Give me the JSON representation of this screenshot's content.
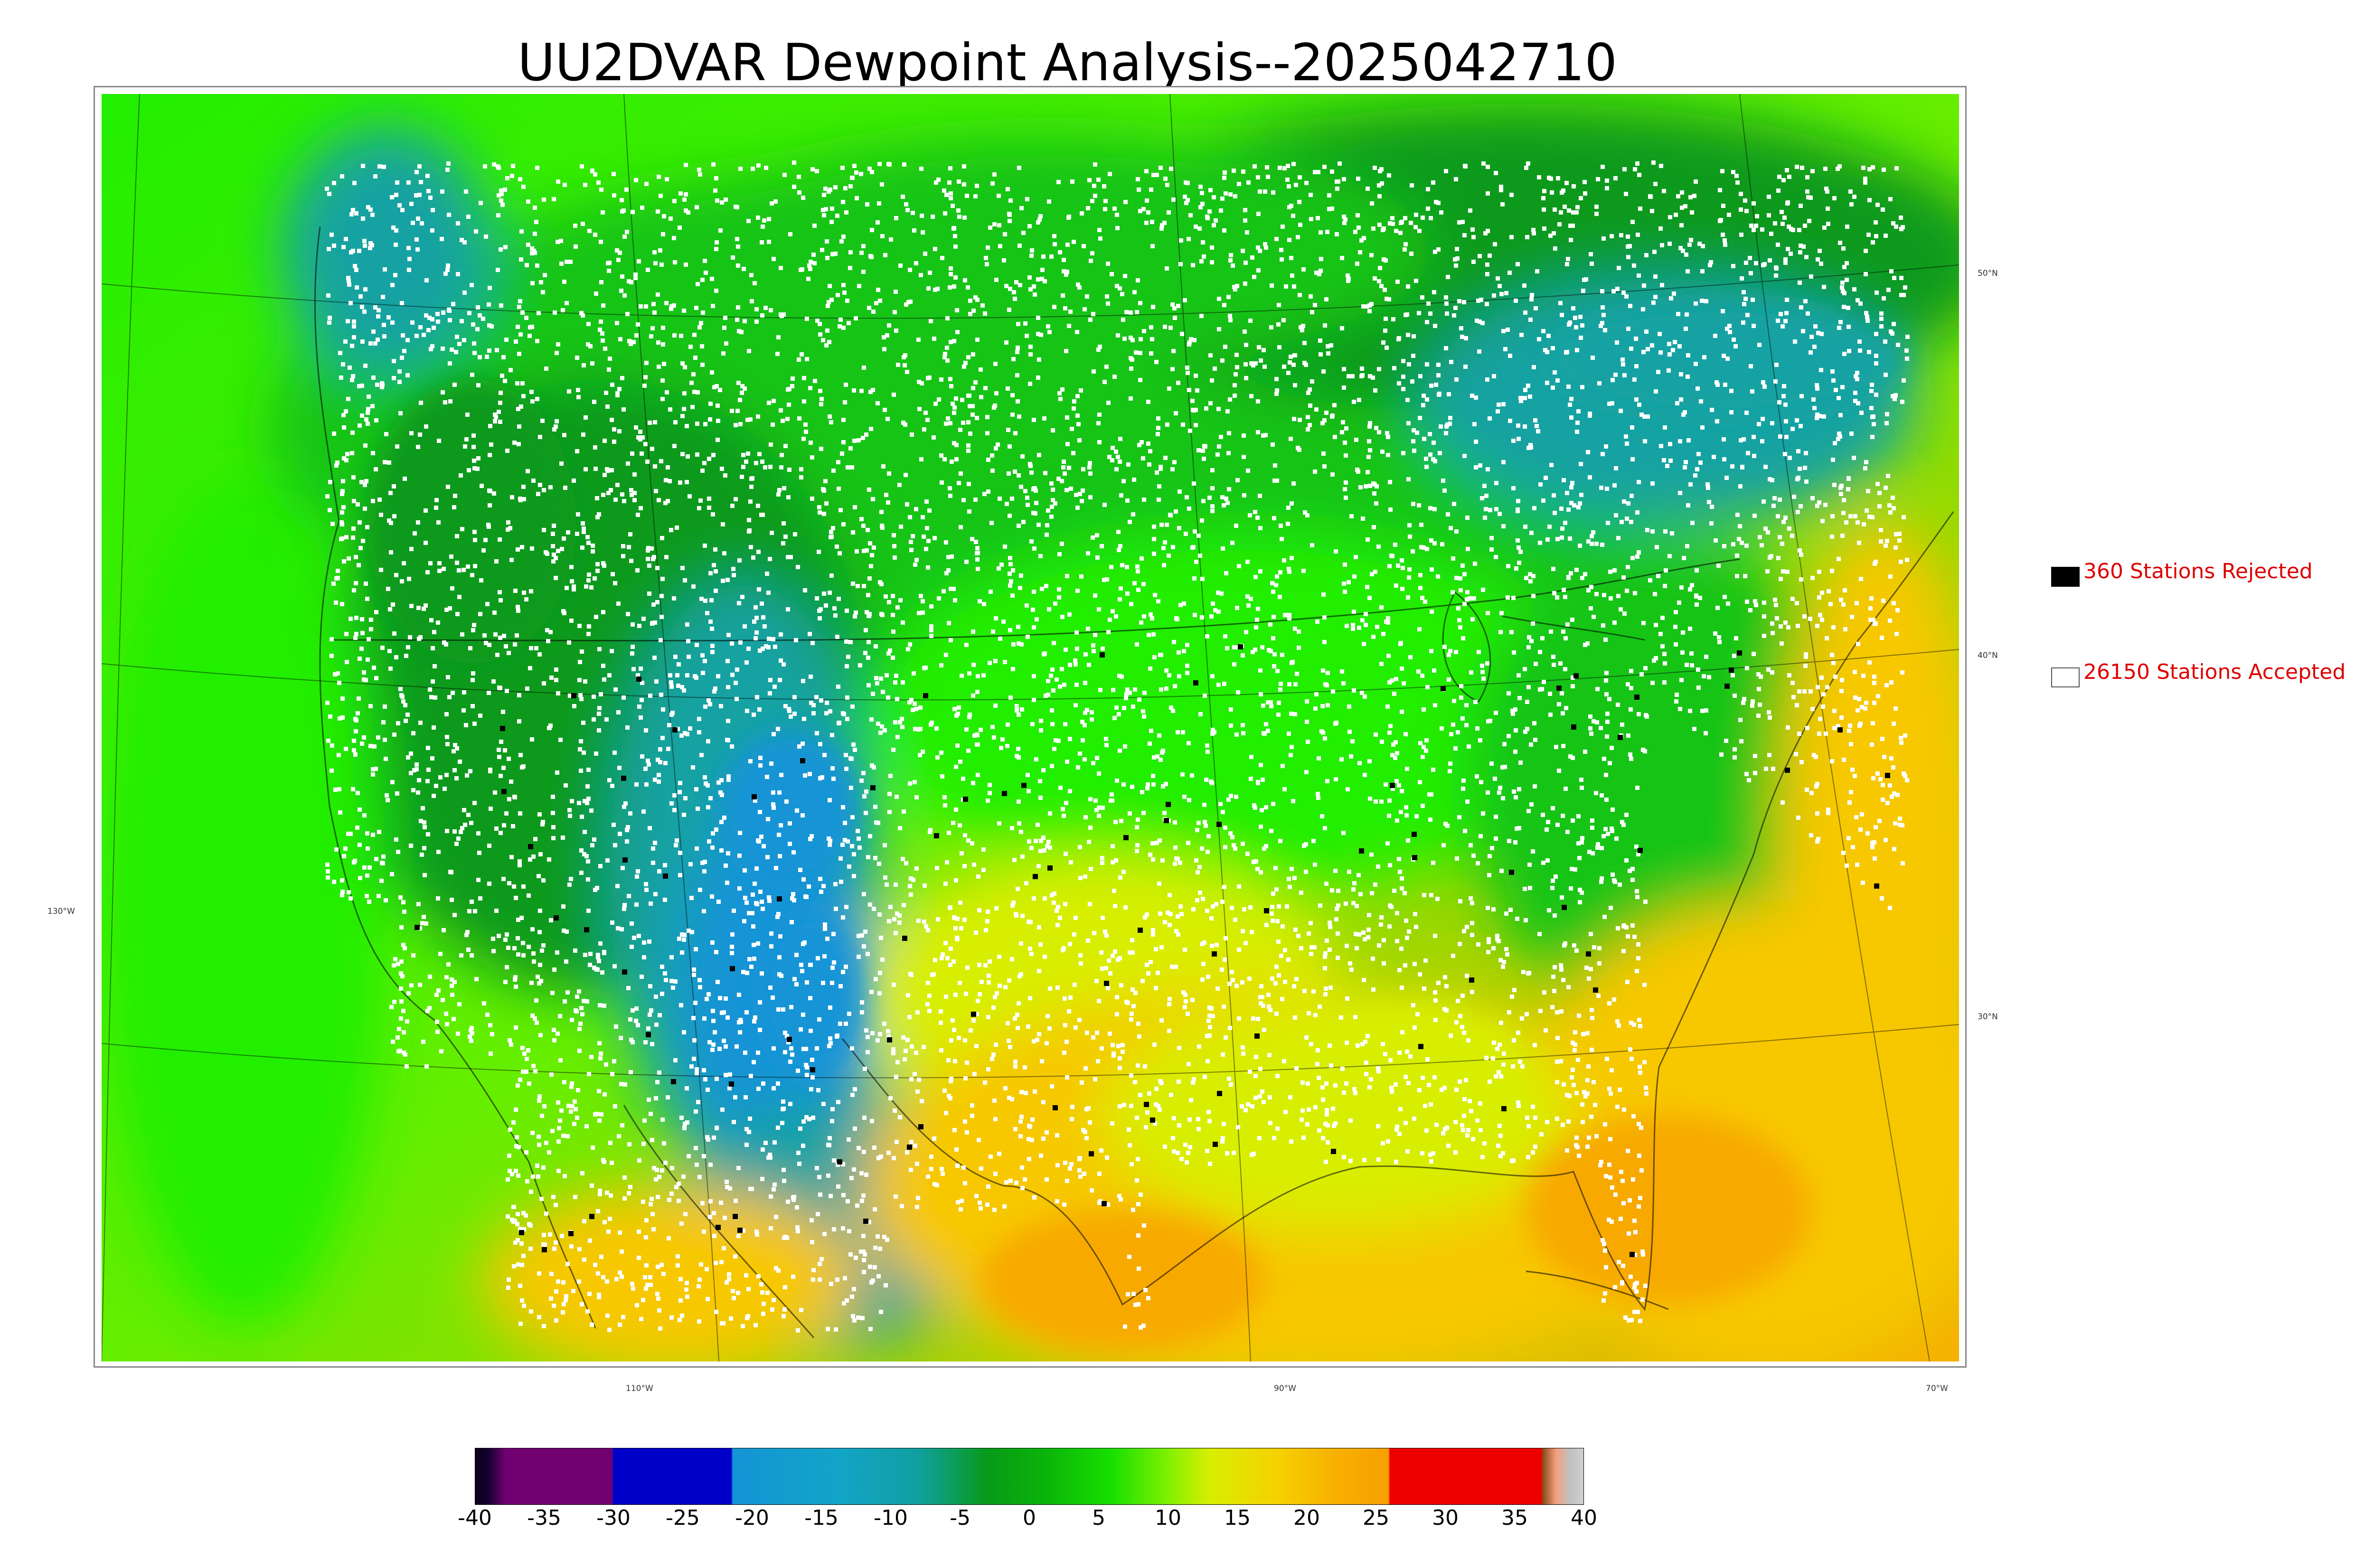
{
  "title": "UU2DVAR Dewpoint Analysis--2025042710",
  "map": {
    "lat_labels": [
      "50°N",
      "40°N",
      "30°N"
    ],
    "lon_labels": [
      "130°W",
      "110°W",
      "90°W",
      "70°W"
    ],
    "colors": {
      "green_dark": "#0a9a1a",
      "green": "#18c418",
      "green_bright": "#22ee00",
      "teal": "#12a2a2",
      "blue": "#1494d6",
      "yellow": "#d8ee00",
      "gold": "#f7c800",
      "orange": "#f7a900",
      "station_accepted": "#ffffff",
      "station_rejected": "#000000"
    }
  },
  "legend": {
    "rejected": {
      "label": "360 Stations Rejected",
      "color": "#000000"
    },
    "accepted": {
      "label": "26150 Stations Accepted",
      "color": "#ffffff"
    }
  },
  "colorbar": {
    "ticks": [
      "-40",
      "-35",
      "-30",
      "-25",
      "-20",
      "-15",
      "-10",
      "-5",
      "0",
      "5",
      "10",
      "15",
      "20",
      "25",
      "30",
      "35",
      "40"
    ],
    "range": [
      -40,
      40
    ],
    "stops": [
      {
        "v": -40,
        "c": "#0b0018"
      },
      {
        "v": -39,
        "c": "#150030"
      },
      {
        "v": -37.8,
        "c": "#700070"
      },
      {
        "v": -30.1,
        "c": "#700070"
      },
      {
        "v": -30,
        "c": "#0000c8"
      },
      {
        "v": -21.5,
        "c": "#0000c8"
      },
      {
        "v": -21.4,
        "c": "#1494d6"
      },
      {
        "v": -14,
        "c": "#12a4c8"
      },
      {
        "v": -8,
        "c": "#10a0a0"
      },
      {
        "v": -3,
        "c": "#089a18"
      },
      {
        "v": 1,
        "c": "#0ab20a"
      },
      {
        "v": 6,
        "c": "#18e000"
      },
      {
        "v": 10,
        "c": "#80f000"
      },
      {
        "v": 13,
        "c": "#d8ee00"
      },
      {
        "v": 18,
        "c": "#f7d000"
      },
      {
        "v": 22,
        "c": "#f7b000"
      },
      {
        "v": 25.9,
        "c": "#f7a000"
      },
      {
        "v": 26,
        "c": "#ee0000"
      },
      {
        "v": 36.9,
        "c": "#ee0000"
      },
      {
        "v": 37,
        "c": "#8b4513"
      },
      {
        "v": 38,
        "c": "#f4a080"
      },
      {
        "v": 39,
        "c": "#c0c0c0"
      },
      {
        "v": 40,
        "c": "#d0d0d0"
      }
    ]
  }
}
